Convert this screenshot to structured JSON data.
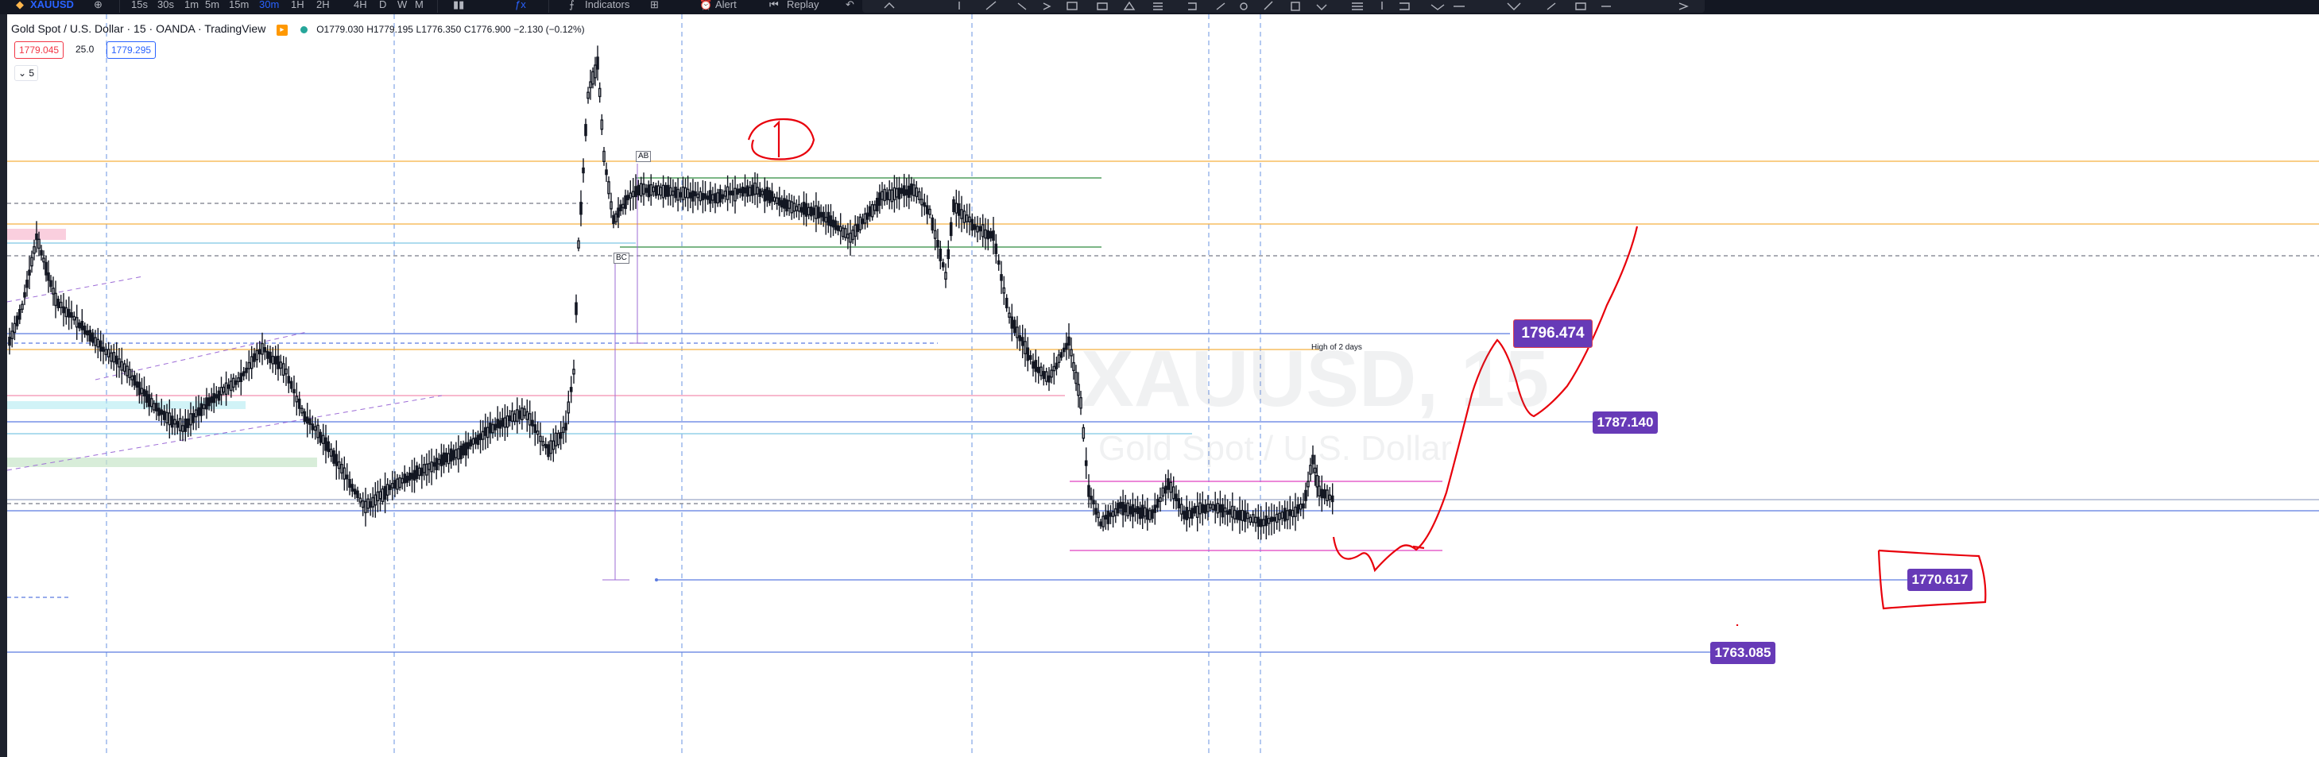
{
  "toolbar": {
    "symbol": "XAUUSD",
    "intervals": [
      "15s",
      "30s",
      "1m",
      "5m",
      "15m",
      "30m",
      "1H",
      "2H",
      "4H",
      "D",
      "W",
      "M"
    ],
    "active_interval": "15m",
    "indicators_label": "Indicators",
    "alert_label": "Alert",
    "replay_label": "Replay"
  },
  "legend": {
    "title": "Gold Spot / U.S. Dollar · 15 · OANDA · TradingView",
    "open": "O1779.030",
    "high": "H1779.195",
    "low": "L1776.350",
    "close": "C1776.900",
    "change": "−2.130 (−0.12%)",
    "sell_price": "1779.045",
    "spread": "25.0",
    "buy_price": "1779.295",
    "collapse_count": "5"
  },
  "watermark": {
    "symbol": "XAUUSD, 15",
    "name": "Gold Spot / U.S. Dollar"
  },
  "annotations": {
    "ab": "AB",
    "bc": "BC",
    "high_of_2_days": "High of 2 days",
    "handwritten_one": "1"
  },
  "price_labels": [
    {
      "value": "1796.474"
    },
    {
      "value": "1787.140"
    },
    {
      "value": "1770.617"
    },
    {
      "value": "1763.085"
    }
  ],
  "colors": {
    "label_purple": "#673ab7",
    "handwriting_red": "#e8000b",
    "orange_line": "#f5b041",
    "blue_line": "#5b7be0",
    "green_line": "#2e8b3e",
    "pink_line": "#e040c0"
  }
}
